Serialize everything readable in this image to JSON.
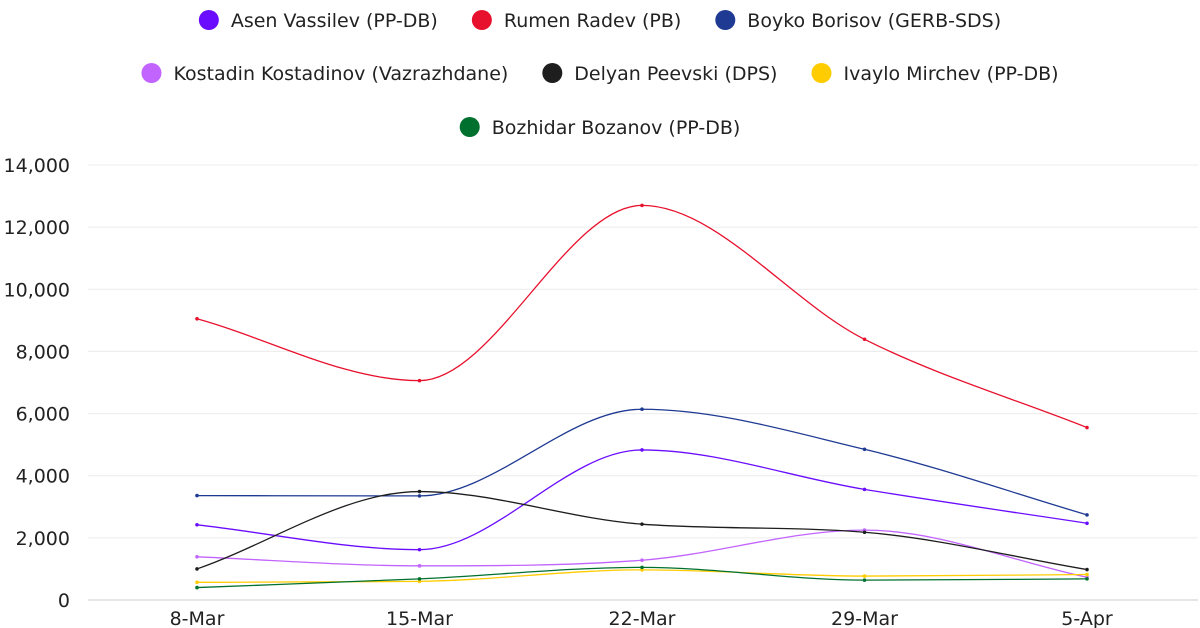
{
  "chart_data": {
    "type": "line",
    "title": "",
    "xlabel": "",
    "ylabel": "",
    "categories": [
      "8-Mar",
      "15-Mar",
      "22-Mar",
      "29-Mar",
      "5-Apr"
    ],
    "ylim": [
      0,
      14000
    ],
    "yticks": [
      0,
      2000,
      4000,
      6000,
      8000,
      10000,
      12000,
      14000
    ],
    "ytick_labels": [
      "0",
      "2,000",
      "4,000",
      "6,000",
      "8,000",
      "10,000",
      "12,000",
      "14,000"
    ],
    "grid": true,
    "legend_position": "top-center",
    "series": [
      {
        "name": "Asen Vassilev (PP-DB)",
        "color": "#6a0dff",
        "values": [
          2420,
          1620,
          4830,
          3560,
          2470
        ]
      },
      {
        "name": "Rumen Radev (PB)",
        "color": "#e8112d",
        "values": [
          9050,
          7060,
          12700,
          8390,
          5550
        ]
      },
      {
        "name": "Boyko Borisov (GERB-SDS)",
        "color": "#1f3a93",
        "values": [
          3360,
          3350,
          6140,
          4850,
          2740
        ]
      },
      {
        "name": "Kostadin Kostadinov (Vazrazhdane)",
        "color": "#c264ff",
        "values": [
          1390,
          1100,
          1280,
          2250,
          730
        ]
      },
      {
        "name": "Delyan Peevski (DPS)",
        "color": "#1e1e1e",
        "values": [
          1000,
          3490,
          2440,
          2180,
          980
        ]
      },
      {
        "name": "Ivaylo Mirchev (PP-DB)",
        "color": "#ffcc00",
        "values": [
          570,
          600,
          970,
          770,
          820
        ]
      },
      {
        "name": "Bozhidar Bozanov (PP-DB)",
        "color": "#00702f",
        "values": [
          400,
          680,
          1050,
          640,
          680
        ]
      }
    ]
  }
}
